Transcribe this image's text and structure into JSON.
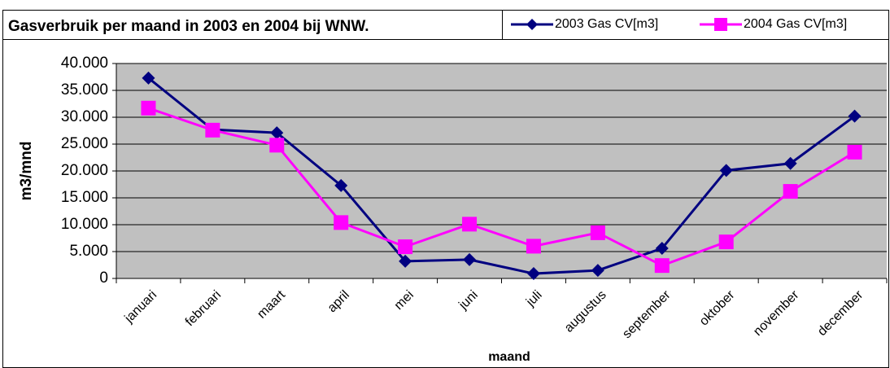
{
  "chart_data": {
    "type": "line",
    "title": "Gasverbruik per maand in 2003 en 2004 bij WNW.",
    "x_label": "maand",
    "y_label": "m3/mnd",
    "categories": [
      "januari",
      "februari",
      "maart",
      "april",
      "mei",
      "juni",
      "juli",
      "augustus",
      "september",
      "oktober",
      "november",
      "december"
    ],
    "series": [
      {
        "name": "2003 Gas CV[m3]",
        "color": "#000080",
        "marker": "diamond",
        "values": [
          37300,
          27700,
          27100,
          17300,
          3200,
          3500,
          900,
          1500,
          5600,
          20100,
          21400,
          30200
        ]
      },
      {
        "name": "2004 Gas CV[m3]",
        "color": "#ff00ff",
        "marker": "square",
        "values": [
          31700,
          27600,
          24800,
          10400,
          5900,
          10100,
          6000,
          8500,
          2400,
          6800,
          16200,
          23500
        ]
      }
    ],
    "ylim": [
      0,
      40000
    ],
    "yticks": [
      0,
      {
        "value": 5000,
        "label": "5.000"
      },
      {
        "value": 10000,
        "label": "10.000"
      },
      {
        "value": 15000,
        "label": "15.000"
      },
      {
        "value": 20000,
        "label": "20.000"
      },
      {
        "value": 25000,
        "label": "25.000"
      },
      {
        "value": 30000,
        "label": "30.000"
      },
      {
        "value": 35000,
        "label": "35.000"
      },
      {
        "value": 40000,
        "label": "40.000"
      }
    ],
    "grid": true,
    "plot_background": "#c0c0c0"
  }
}
